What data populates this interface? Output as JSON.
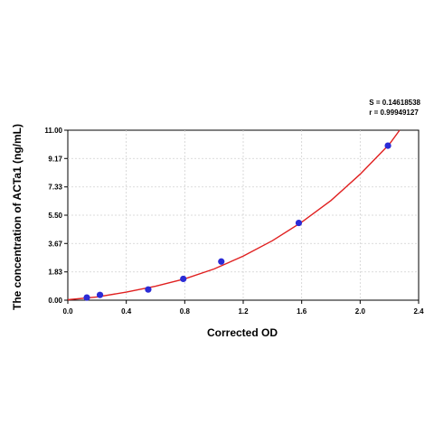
{
  "chart_data": {
    "type": "scatter",
    "title": "",
    "xlabel": "Corrected OD",
    "ylabel": "The concentration of ACTa1 (ng/mL)",
    "xlim": [
      0.0,
      2.4
    ],
    "ylim": [
      0.0,
      11.0
    ],
    "xticks": [
      0.0,
      0.4,
      0.8,
      1.2,
      1.6,
      2.0,
      2.4
    ],
    "xtick_labels": [
      "0.0",
      "0.4",
      "0.8",
      "1.2",
      "1.6",
      "2.0",
      "2.4"
    ],
    "yticks": [
      0.0,
      1.83,
      3.67,
      5.5,
      7.33,
      9.17,
      11.0
    ],
    "ytick_labels": [
      "0.00",
      "1.83",
      "3.67",
      "5.50",
      "7.33",
      "9.17",
      "11.00"
    ],
    "grid": true,
    "series": [
      {
        "marker_color": "#2b2bd6",
        "x": [
          0.13,
          0.22,
          0.55,
          0.79,
          1.05,
          1.58,
          2.19
        ],
        "y": [
          0.17,
          0.34,
          0.69,
          1.38,
          2.5,
          5.0,
          10.0
        ]
      }
    ],
    "fit": {
      "color": "#e02020",
      "x": [
        0.0,
        0.2,
        0.4,
        0.6,
        0.8,
        1.0,
        1.2,
        1.4,
        1.6,
        1.8,
        2.0,
        2.2,
        2.27
      ],
      "y": [
        0.03,
        0.21,
        0.52,
        0.9,
        1.38,
        2.02,
        2.85,
        3.85,
        5.05,
        6.45,
        8.15,
        10.1,
        11.0
      ]
    }
  },
  "stats": {
    "s_text": "S = 0.14618538",
    "r_text": "r = 0.99949127"
  }
}
